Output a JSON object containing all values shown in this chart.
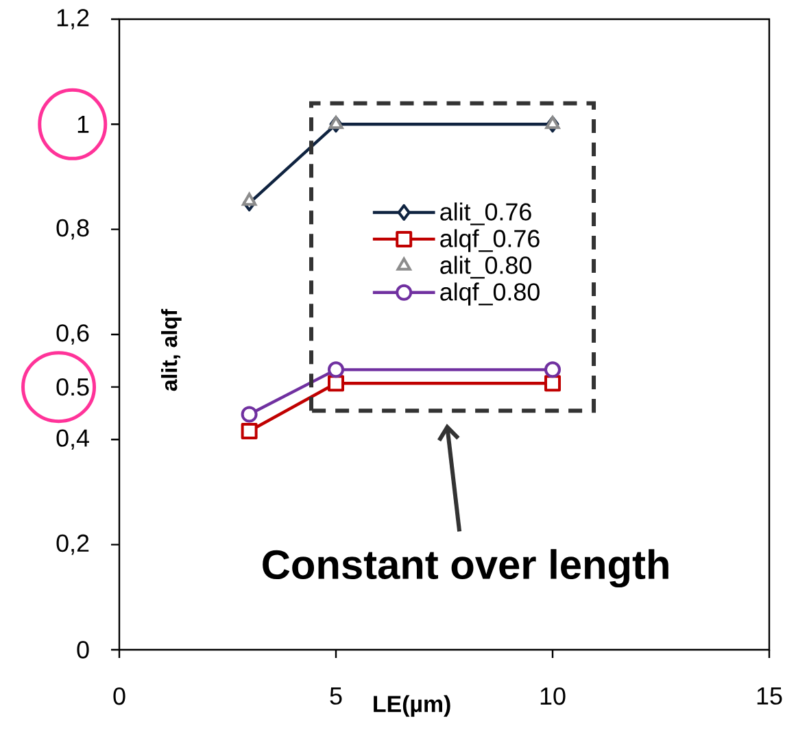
{
  "chart_data": {
    "type": "line",
    "x": [
      3,
      5,
      10
    ],
    "series": [
      {
        "name": "alit_0.76",
        "color": "#0f2340",
        "marker": "diamond",
        "values": [
          0.85,
          1,
          1
        ]
      },
      {
        "name": "alqf_0.76",
        "color": "#c00000",
        "marker": "square",
        "values": [
          0.416,
          0.507,
          0.507
        ]
      },
      {
        "name": "alit_0.80",
        "type": "scatter",
        "color": "#8c8c8c",
        "marker": "triangle",
        "values": [
          0.854,
          1,
          1
        ]
      },
      {
        "name": "alqf_0.80",
        "color": "#7030a0",
        "marker": "circle",
        "values": [
          0.448,
          0.533,
          0.533
        ]
      }
    ],
    "xlabel": "LE(µm)",
    "ylabel": "alit, alqf",
    "xlim": [
      0,
      15
    ],
    "xticks": [
      0,
      5,
      10,
      15
    ],
    "ylim": [
      0,
      1.2
    ],
    "yticks": [
      0,
      {
        "value": 0.2,
        "label": "0,2"
      },
      {
        "value": 0.4,
        "label": "0,4"
      },
      {
        "value": 0.5,
        "label": "0.5"
      },
      {
        "value": 0.6,
        "label": "0,6"
      },
      {
        "value": 0.8,
        "label": "0,8"
      },
      1,
      {
        "value": 1.2,
        "label": "1,2"
      }
    ],
    "legend": "center",
    "annotations": [
      "Constant over length"
    ]
  }
}
